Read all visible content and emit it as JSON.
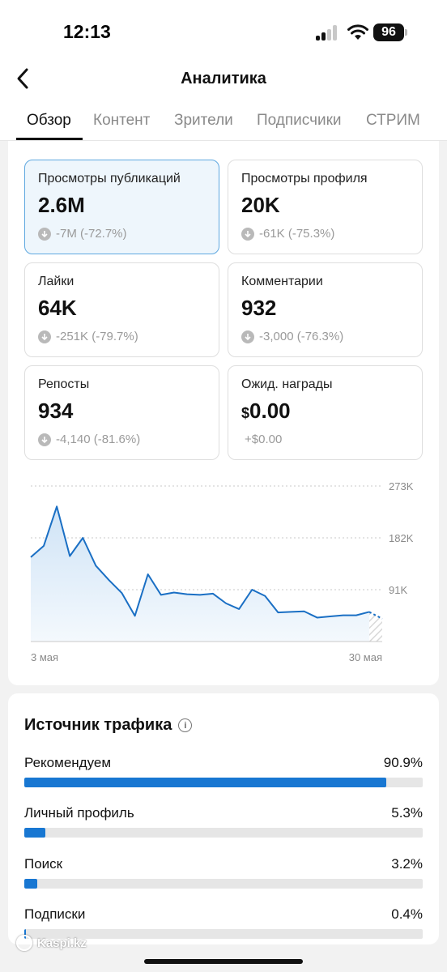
{
  "status_bar": {
    "time": "12:13",
    "battery": "96"
  },
  "header": {
    "title": "Аналитика"
  },
  "tabs": [
    {
      "label": "Обзор",
      "active": true
    },
    {
      "label": "Контент",
      "active": false
    },
    {
      "label": "Зрители",
      "active": false
    },
    {
      "label": "Подписчики",
      "active": false
    },
    {
      "label": "СТРИМ",
      "active": false
    }
  ],
  "metrics": [
    {
      "label": "Просмотры публикаций",
      "value": "2.6M",
      "change": "-7M (-72.7%)",
      "selected": true
    },
    {
      "label": "Просмотры профиля",
      "value": "20K",
      "change": "-61K (-75.3%)"
    },
    {
      "label": "Лайки",
      "value": "64K",
      "change": "-251K (-79.7%)"
    },
    {
      "label": "Комментарии",
      "value": "932",
      "change": "-3,000 (-76.3%)"
    },
    {
      "label": "Репосты",
      "value": "934",
      "change": "-4,140 (-81.6%)"
    },
    {
      "label": "Ожид. награды",
      "currency": "$",
      "value": "0.00",
      "change": "+$0.00"
    }
  ],
  "chart_data": {
    "type": "area",
    "x_labels": [
      "3 мая",
      "30 мая"
    ],
    "y_ticks": [
      "273K",
      "182K",
      "91K"
    ],
    "y_tick_values": [
      273000,
      182000,
      91000
    ],
    "ylim": [
      0,
      273000
    ],
    "grid": true,
    "x": [
      3,
      4,
      5,
      6,
      7,
      8,
      9,
      10,
      11,
      12,
      13,
      14,
      15,
      16,
      17,
      18,
      19,
      20,
      21,
      22,
      23,
      24,
      25,
      26,
      27,
      28,
      29,
      30
    ],
    "values": [
      148000,
      168000,
      237000,
      150000,
      182000,
      133000,
      108000,
      85000,
      45000,
      118000,
      82000,
      86000,
      83000,
      82000,
      84000,
      67000,
      57000,
      91000,
      80000,
      51000,
      52000,
      53000,
      42000,
      44000,
      46000,
      46000,
      52000,
      40000
    ],
    "line_color": "#1a6fc4"
  },
  "traffic": {
    "title": "Источник трафика",
    "sources": [
      {
        "label": "Рекомендуем",
        "pct": "90.9%",
        "value": 90.9
      },
      {
        "label": "Личный профиль",
        "pct": "5.3%",
        "value": 5.3
      },
      {
        "label": "Поиск",
        "pct": "3.2%",
        "value": 3.2
      },
      {
        "label": "Подписки",
        "pct": "0.4%",
        "value": 0.4
      }
    ]
  },
  "watermark": "Kaspi.kz"
}
